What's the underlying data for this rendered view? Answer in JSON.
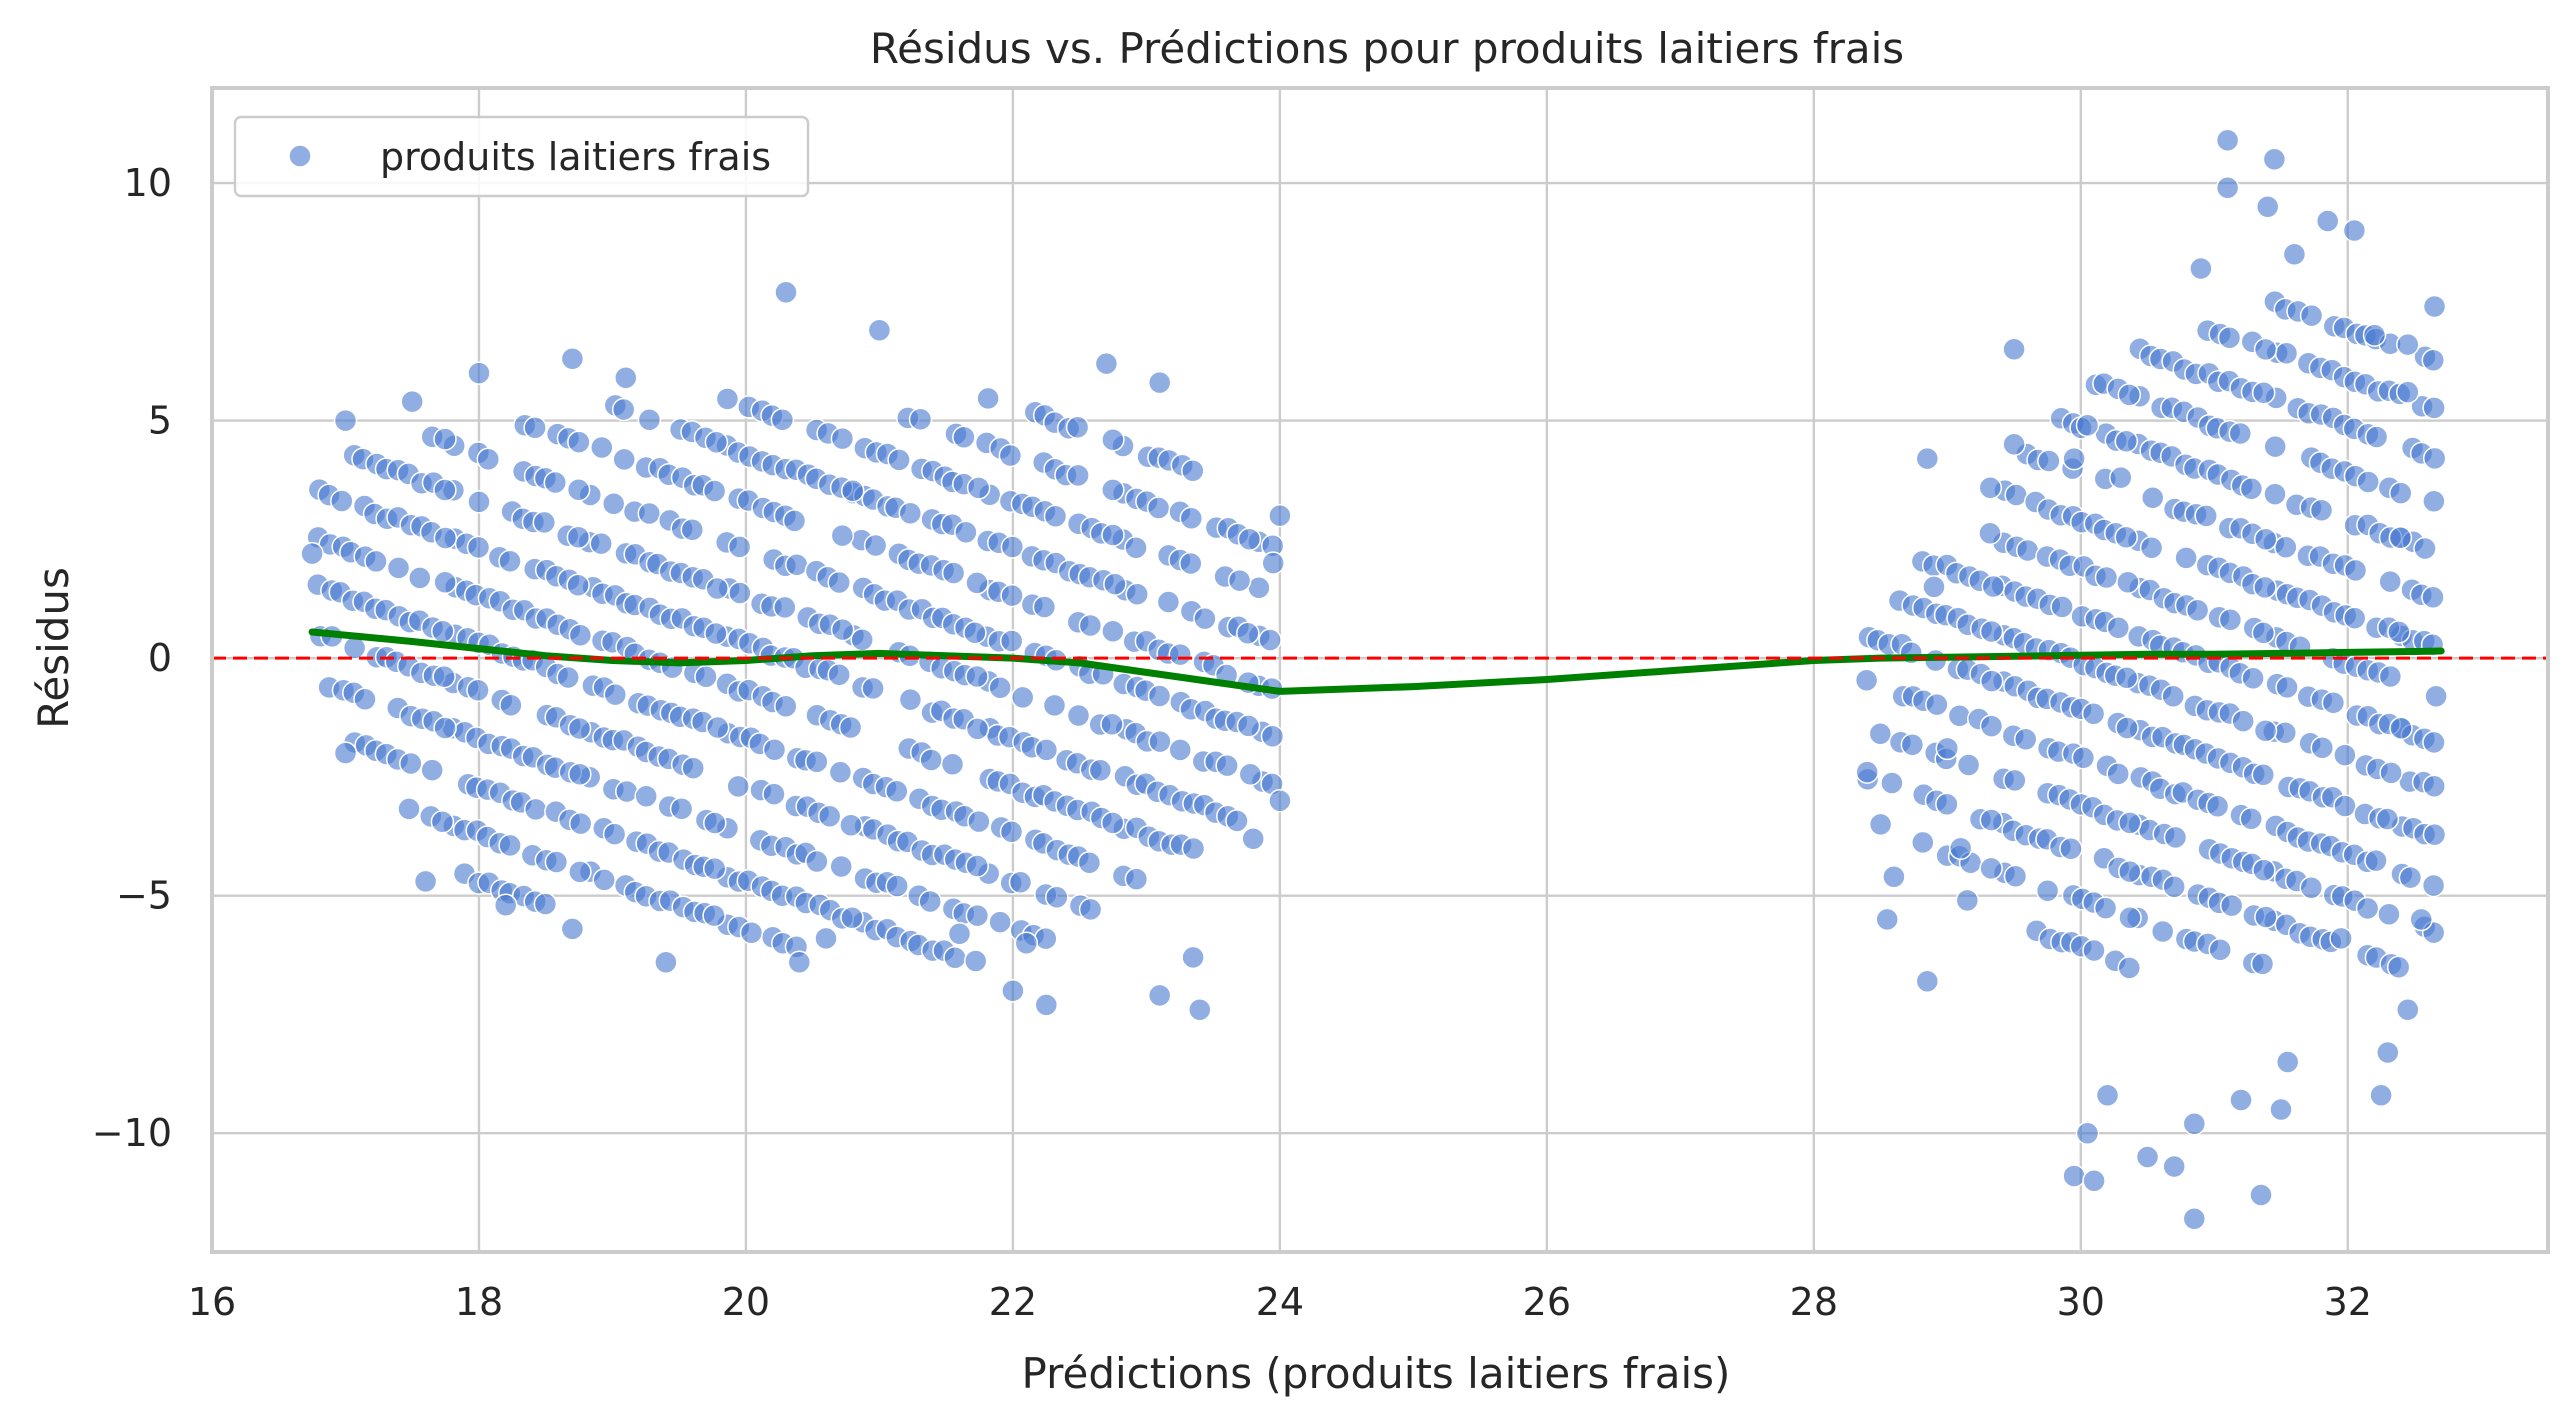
{
  "chart_data": {
    "type": "scatter",
    "title": "Résidus vs. Prédictions pour produits laitiers frais",
    "xlabel": "Prédictions (produits laitiers frais)",
    "ylabel": "Résidus",
    "xlim": [
      16,
      33.5
    ],
    "ylim": [
      -12.5,
      12
    ],
    "x_ticks": [
      16,
      18,
      20,
      22,
      24,
      26,
      28,
      30,
      32
    ],
    "y_ticks": [
      -10,
      -5,
      0,
      5,
      10
    ],
    "x_tick_labels": [
      "16",
      "18",
      "20",
      "22",
      "24",
      "26",
      "28",
      "30",
      "32"
    ],
    "y_tick_labels": [
      "−10",
      "−5",
      "0",
      "5",
      "10"
    ],
    "grid": true,
    "legend": {
      "position": "top-left",
      "entries": [
        "produits laitiers frais"
      ]
    },
    "series": [
      {
        "name": "produits laitiers frais",
        "kind": "points",
        "color": "#4878d0",
        "stripes": {
          "clusters": [
            {
              "x_range": [
                16.8,
                24.0
              ],
              "slope": -1.0,
              "residual_offsets": [
                -5.5,
                -4.5,
                -3.5,
                -2.5,
                -1.5,
                -0.5,
                0.5,
                1.5,
                2.5,
                3.5,
                4.5,
                5.5
              ],
              "note_envelope_top": [
                [
                  16.8,
                  4.2
                ],
                [
                  18.5,
                  5.2
                ],
                [
                  20.5,
                  6.5
                ],
                [
                  22.0,
                  6.0
                ],
                [
                  24.0,
                  3.0
                ]
              ],
              "note_envelope_bottom": [
                [
                  16.8,
                  -1.0
                ],
                [
                  18.0,
                  -5.0
                ],
                [
                  20.0,
                  -6.0
                ],
                [
                  22.0,
                  -6.5
                ],
                [
                  24.0,
                  -3.0
                ]
              ]
            },
            {
              "x_range": [
                28.4,
                32.7
              ],
              "slope": -1.0,
              "residual_offsets": [
                -5.5,
                -4.5,
                -3.5,
                -2.5,
                -1.5,
                -0.5,
                0.5,
                1.5,
                2.5,
                3.5,
                4.5,
                5.5,
                6.5,
                7.5
              ],
              "note_envelope_top": [
                [
                  28.4,
                  0.6
                ],
                [
                  29.5,
                  4.5
                ],
                [
                  31.0,
                  8.0
                ],
                [
                  32.7,
                  6.5
                ]
              ],
              "note_envelope_bottom": [
                [
                  28.4,
                  -3.0
                ],
                [
                  29.5,
                  -5.5
                ],
                [
                  31.0,
                  -9.0
                ],
                [
                  32.7,
                  -6.5
                ]
              ]
            }
          ]
        },
        "outliers": [
          [
            20.3,
            7.7
          ],
          [
            18.7,
            6.3
          ],
          [
            19.1,
            5.9
          ],
          [
            18.0,
            6.0
          ],
          [
            17.5,
            5.4
          ],
          [
            17.0,
            5.0
          ],
          [
            16.75,
            2.2
          ],
          [
            17.0,
            -2.0
          ],
          [
            17.6,
            -4.7
          ],
          [
            18.2,
            -5.2
          ],
          [
            18.7,
            -5.7
          ],
          [
            19.4,
            -6.4
          ],
          [
            20.4,
            -6.4
          ],
          [
            22.0,
            -7.0
          ],
          [
            22.25,
            -7.3
          ],
          [
            23.1,
            -7.1
          ],
          [
            23.4,
            -7.4
          ],
          [
            23.35,
            -6.3
          ],
          [
            22.7,
            6.2
          ],
          [
            23.1,
            5.8
          ],
          [
            21.0,
            6.9
          ],
          [
            24.0,
            3.0
          ],
          [
            23.95,
            2.0
          ],
          [
            24.0,
            -3.0
          ],
          [
            23.8,
            -3.8
          ],
          [
            22.1,
            -6.0
          ],
          [
            21.6,
            -5.8
          ],
          [
            20.6,
            -5.9
          ],
          [
            28.4,
            -2.4
          ],
          [
            28.5,
            -3.5
          ],
          [
            28.55,
            -5.5
          ],
          [
            28.6,
            -4.6
          ],
          [
            28.85,
            -6.8
          ],
          [
            29.1,
            -4.0
          ],
          [
            29.15,
            -5.1
          ],
          [
            29.5,
            6.5
          ],
          [
            29.5,
            4.5
          ],
          [
            29.95,
            4.2
          ],
          [
            30.05,
            4.9
          ],
          [
            30.3,
            3.8
          ],
          [
            29.95,
            -10.9
          ],
          [
            30.05,
            -10.0
          ],
          [
            30.1,
            -11.0
          ],
          [
            30.2,
            -9.2
          ],
          [
            30.5,
            -10.5
          ],
          [
            30.7,
            -10.7
          ],
          [
            30.85,
            -11.8
          ],
          [
            30.85,
            -9.8
          ],
          [
            31.2,
            -9.3
          ],
          [
            31.35,
            -11.3
          ],
          [
            31.5,
            -9.5
          ],
          [
            31.55,
            -8.5
          ],
          [
            31.1,
            10.9
          ],
          [
            31.1,
            9.9
          ],
          [
            31.45,
            10.5
          ],
          [
            31.4,
            9.5
          ],
          [
            31.6,
            8.5
          ],
          [
            31.85,
            9.2
          ],
          [
            32.05,
            9.0
          ],
          [
            30.9,
            8.2
          ],
          [
            32.2,
            6.8
          ],
          [
            32.45,
            6.6
          ],
          [
            32.65,
            7.4
          ],
          [
            32.45,
            5.6
          ],
          [
            32.25,
            -9.2
          ],
          [
            32.45,
            -7.4
          ],
          [
            32.3,
            -8.3
          ],
          [
            31.95,
            -5.9
          ],
          [
            32.55,
            -5.5
          ],
          [
            28.85,
            4.2
          ],
          [
            28.9,
            1.5
          ],
          [
            29.0,
            -1.9
          ]
        ]
      },
      {
        "name": "",
        "kind": "line",
        "color": "#008000",
        "x": [
          16.75,
          17.5,
          18.0,
          18.5,
          19.0,
          19.5,
          20.0,
          20.5,
          21.0,
          21.5,
          22.0,
          22.5,
          23.0,
          23.5,
          24.0,
          25.0,
          26.0,
          27.0,
          28.0,
          28.5,
          29.0,
          29.5,
          30.0,
          30.5,
          31.0,
          31.5,
          32.0,
          32.5,
          32.7
        ],
        "y": [
          0.55,
          0.35,
          0.2,
          0.05,
          -0.05,
          -0.1,
          -0.05,
          0.05,
          0.1,
          0.05,
          0.0,
          -0.1,
          -0.3,
          -0.5,
          -0.7,
          -0.6,
          -0.45,
          -0.25,
          -0.05,
          0.0,
          0.02,
          0.04,
          0.06,
          0.08,
          0.08,
          0.1,
          0.12,
          0.14,
          0.15
        ]
      },
      {
        "name": "",
        "kind": "hline",
        "color": "#ff0000",
        "y": 0,
        "style": "dashed"
      }
    ]
  }
}
